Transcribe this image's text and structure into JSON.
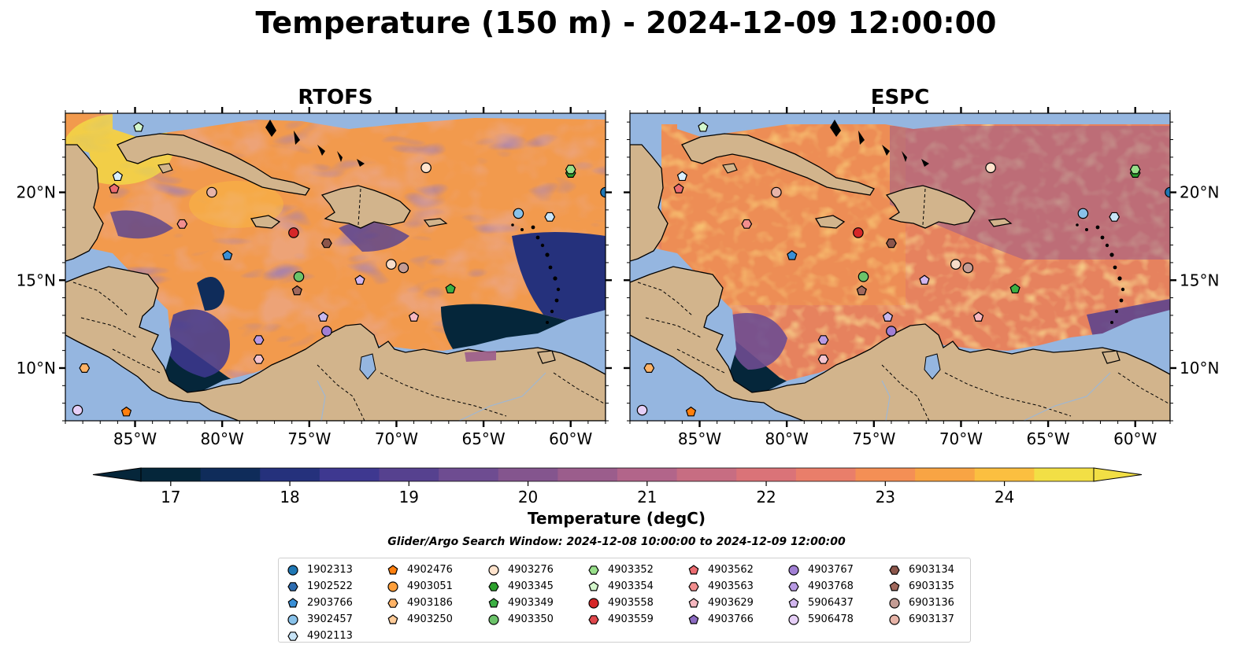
{
  "figure": {
    "title": "Temperature (150 m) - 2024-12-09 12:00:00",
    "colorbar_label": "Temperature (degC)",
    "search_window": "Glider/Argo Search Window: 2024-12-08 10:00:00 to 2024-12-09 12:00:00"
  },
  "map": {
    "lon_range": [
      -89,
      -58
    ],
    "lat_range": [
      7,
      24.5
    ],
    "lon_ticks": [
      -85,
      -80,
      -75,
      -70,
      -65,
      -60
    ],
    "lon_tick_labels": [
      "85°W",
      "80°W",
      "75°W",
      "70°W",
      "65°W",
      "60°W"
    ],
    "lat_ticks": [
      10,
      15,
      20
    ],
    "lat_tick_labels": [
      "10°N",
      "15°N",
      "20°N"
    ],
    "land_color": "#d2b48c",
    "shelf_color": "#95b6e0"
  },
  "panels": [
    {
      "id": "rtofs",
      "title": "RTOFS"
    },
    {
      "id": "espc",
      "title": "ESPC"
    }
  ],
  "colorbar": {
    "min": 16.75,
    "max": 24.75,
    "ticks": [
      17,
      18,
      19,
      20,
      21,
      22,
      23,
      24
    ],
    "tick_labels": [
      "17",
      "18",
      "19",
      "20",
      "21",
      "22",
      "23",
      "24"
    ],
    "colors": [
      "#05263a",
      "#0f2c5a",
      "#25317c",
      "#3e3890",
      "#56418f",
      "#6e4c91",
      "#84558e",
      "#9b5d8c",
      "#b2658a",
      "#c76d82",
      "#da7378",
      "#e97e6a",
      "#f48f55",
      "#f8a444",
      "#fbbf40",
      "#f2df45"
    ]
  },
  "floats": [
    {
      "id": "1902313",
      "marker": "circle",
      "color": "#1f77b4",
      "lon": -58.0,
      "lat": 20.0
    },
    {
      "id": "1902522",
      "marker": "hexagon",
      "color": "#2d6cb0",
      "lon": null,
      "lat": null
    },
    {
      "id": "2903766",
      "marker": "pentagon",
      "color": "#3a8fd6",
      "lon": -79.7,
      "lat": 16.4
    },
    {
      "id": "3902457",
      "marker": "circle",
      "color": "#89c2ea",
      "lon": -63.0,
      "lat": 18.8
    },
    {
      "id": "4902113",
      "marker": "hexagon",
      "color": "#c7e4f7",
      "lon": -61.2,
      "lat": 18.6
    },
    {
      "id": "4902476",
      "marker": "pentagon",
      "color": "#ff7f0e",
      "lon": -85.5,
      "lat": 7.5
    },
    {
      "id": "4903051",
      "marker": "circle",
      "color": "#ff9f3a",
      "lon": null,
      "lat": null
    },
    {
      "id": "4903186",
      "marker": "hexagon",
      "color": "#ffb366",
      "lon": -87.9,
      "lat": 10.0
    },
    {
      "id": "4903250",
      "marker": "pentagon",
      "color": "#ffcc99",
      "lon": null,
      "lat": null
    },
    {
      "id": "4903276",
      "marker": "circle",
      "color": "#ffe3cc",
      "lon": -68.3,
      "lat": 21.4
    },
    {
      "id": "4903345",
      "marker": "hexagon",
      "color": "#2ca02c",
      "lon": -60.0,
      "lat": 21.1
    },
    {
      "id": "4903349",
      "marker": "pentagon",
      "color": "#3cb043",
      "lon": -66.9,
      "lat": 14.5
    },
    {
      "id": "4903350",
      "marker": "circle",
      "color": "#6cc36a",
      "lon": -75.6,
      "lat": 15.2
    },
    {
      "id": "4903352",
      "marker": "hexagon",
      "color": "#98df8a",
      "lon": -60.0,
      "lat": 21.3
    },
    {
      "id": "4903354",
      "marker": "pentagon",
      "color": "#d4f7cc",
      "lon": -84.8,
      "lat": 23.7
    },
    {
      "id": "4903558",
      "marker": "circle",
      "color": "#d62728",
      "lon": -75.9,
      "lat": 17.7
    },
    {
      "id": "4903559",
      "marker": "hexagon",
      "color": "#e0474c",
      "lon": null,
      "lat": null
    },
    {
      "id": "4903562",
      "marker": "pentagon",
      "color": "#ec6b70",
      "lon": -86.2,
      "lat": 20.2
    },
    {
      "id": "4903563",
      "marker": "hexagon",
      "color": "#f28e8e",
      "lon": -82.3,
      "lat": 18.2
    },
    {
      "id": "4903629",
      "marker": "pentagon",
      "color": "#f7b8c0",
      "lon": -69.0,
      "lat": 12.9
    },
    {
      "id": "4903766",
      "marker": "pentagon",
      "color": "#8c6bc2",
      "lon": null,
      "lat": null
    },
    {
      "id": "4903767",
      "marker": "circle",
      "color": "#a17fd4",
      "lon": -74.0,
      "lat": 12.1
    },
    {
      "id": "4903768",
      "marker": "hexagon",
      "color": "#b89ae3",
      "lon": -77.9,
      "lat": 11.6
    },
    {
      "id": "5906437",
      "marker": "pentagon",
      "color": "#d2b6ef",
      "lon": -72.1,
      "lat": 15.0
    },
    {
      "id": "5906478",
      "marker": "circle",
      "color": "#e6cff7",
      "lon": -88.3,
      "lat": 7.6
    },
    {
      "id": "6903134",
      "marker": "hexagon",
      "color": "#8c564b",
      "lon": -74.0,
      "lat": 17.1
    },
    {
      "id": "6903135",
      "marker": "pentagon",
      "color": "#a0685c",
      "lon": -75.7,
      "lat": 14.4
    },
    {
      "id": "6903136",
      "marker": "circle",
      "color": "#c49c94",
      "lon": -69.6,
      "lat": 15.7
    },
    {
      "id": "6903137",
      "marker": "circle",
      "color": "#e7b4a8",
      "lon": -80.6,
      "lat": 20.0
    }
  ],
  "extra_markers": [
    {
      "marker": "pentagon",
      "color": "#c7b8ee",
      "lon": -74.2,
      "lat": 12.9
    },
    {
      "marker": "hexagon",
      "color": "#f4c4cf",
      "lon": -77.9,
      "lat": 10.5
    },
    {
      "marker": "circle",
      "color": "#f7dcc9",
      "lon": -70.3,
      "lat": 15.9
    },
    {
      "marker": "pentagon",
      "color": "#d9efff",
      "lon": -86.0,
      "lat": 20.9
    }
  ]
}
